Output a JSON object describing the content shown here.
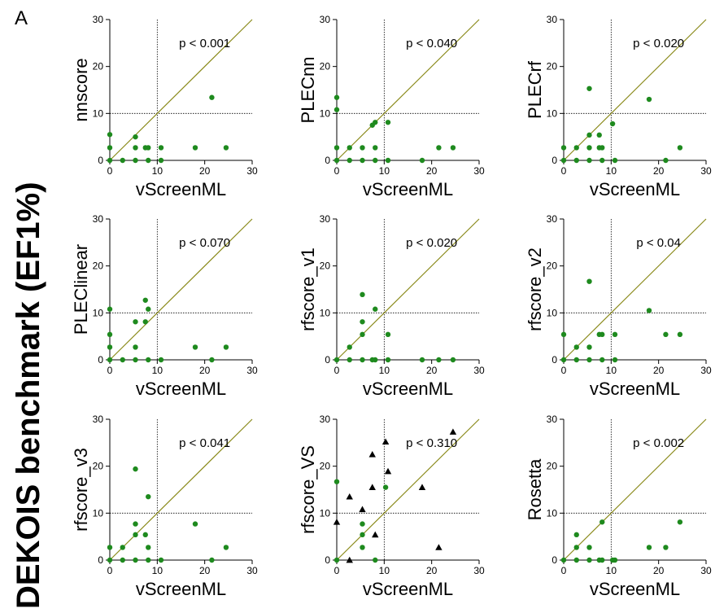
{
  "figure": {
    "panel_letter": "A",
    "y_title": "DEKOIS benchmark (EF1%)"
  },
  "chart_data": [
    {
      "type": "scatter",
      "xlabel": "vScreenML",
      "ylabel": "nnscore",
      "pvalue": "p < 0.001",
      "xlim": [
        0,
        30
      ],
      "ylim": [
        0,
        30
      ],
      "xticks": [
        0,
        10,
        20,
        30
      ],
      "yticks": [
        0,
        10,
        20,
        30
      ],
      "diagonal": true,
      "reference_lines": {
        "x": 10,
        "y": 10
      },
      "points": [
        [
          0,
          5.5
        ],
        [
          0,
          2.7
        ],
        [
          0,
          0
        ],
        [
          2.7,
          0
        ],
        [
          5.4,
          5
        ],
        [
          5.4,
          2.7
        ],
        [
          5.4,
          0
        ],
        [
          7.5,
          2.7
        ],
        [
          8.1,
          2.7
        ],
        [
          8.1,
          0
        ],
        [
          10.8,
          2.7
        ],
        [
          10.8,
          0
        ],
        [
          18,
          2.7
        ],
        [
          21.5,
          13.4
        ],
        [
          24.5,
          2.7
        ]
      ]
    },
    {
      "type": "scatter",
      "xlabel": "vScreenML",
      "ylabel": "PLECnn",
      "pvalue": "p < 0.040",
      "xlim": [
        0,
        30
      ],
      "ylim": [
        0,
        30
      ],
      "xticks": [
        0,
        10,
        20,
        30
      ],
      "yticks": [
        0,
        10,
        20,
        30
      ],
      "diagonal": true,
      "reference_lines": {
        "x": 10,
        "y": 10
      },
      "points": [
        [
          0,
          13.4
        ],
        [
          0,
          10.8
        ],
        [
          0,
          2.7
        ],
        [
          0,
          0
        ],
        [
          2.7,
          2.7
        ],
        [
          2.7,
          0
        ],
        [
          5.4,
          2.7
        ],
        [
          5.4,
          0
        ],
        [
          7.5,
          7.5
        ],
        [
          8.1,
          8.1
        ],
        [
          8.1,
          2.7
        ],
        [
          8.1,
          0
        ],
        [
          10.8,
          8.1
        ],
        [
          10.8,
          0
        ],
        [
          18,
          0
        ],
        [
          21.5,
          2.7
        ],
        [
          24.5,
          2.7
        ]
      ]
    },
    {
      "type": "scatter",
      "xlabel": "vScreenML",
      "ylabel": "PLECrf",
      "pvalue": "p < 0.020",
      "xlim": [
        0,
        30
      ],
      "ylim": [
        0,
        30
      ],
      "xticks": [
        0,
        10,
        20,
        30
      ],
      "yticks": [
        0,
        10,
        20,
        30
      ],
      "diagonal": true,
      "reference_lines": {
        "x": 10,
        "y": 10
      },
      "points": [
        [
          0,
          2.7
        ],
        [
          0,
          0
        ],
        [
          2.7,
          2.7
        ],
        [
          2.7,
          0
        ],
        [
          5.4,
          15.3
        ],
        [
          5.4,
          5.4
        ],
        [
          5.4,
          2.7
        ],
        [
          5.4,
          0
        ],
        [
          7.5,
          5.4
        ],
        [
          7.5,
          2.7
        ],
        [
          8.1,
          2.7
        ],
        [
          8.1,
          0
        ],
        [
          10.3,
          7.8
        ],
        [
          10.8,
          0
        ],
        [
          18,
          13
        ],
        [
          21.5,
          0
        ],
        [
          24.5,
          2.7
        ]
      ]
    },
    {
      "type": "scatter",
      "xlabel": "vScreenML",
      "ylabel": "PLEClinear",
      "pvalue": "p < 0.070",
      "xlim": [
        0,
        30
      ],
      "ylim": [
        0,
        30
      ],
      "xticks": [
        0,
        10,
        20,
        30
      ],
      "yticks": [
        0,
        10,
        20,
        30
      ],
      "diagonal": true,
      "reference_lines": {
        "x": 10,
        "y": 10
      },
      "points": [
        [
          0,
          10.8
        ],
        [
          0,
          5.4
        ],
        [
          0,
          2.7
        ],
        [
          0,
          0
        ],
        [
          2.7,
          0
        ],
        [
          5.4,
          8.1
        ],
        [
          5.4,
          2.7
        ],
        [
          5.4,
          0
        ],
        [
          7.5,
          12.7
        ],
        [
          7.5,
          8.1
        ],
        [
          8.1,
          10.8
        ],
        [
          8.1,
          0
        ],
        [
          10.8,
          0
        ],
        [
          18,
          2.7
        ],
        [
          21.5,
          0
        ],
        [
          24.5,
          2.7
        ]
      ]
    },
    {
      "type": "scatter",
      "xlabel": "vScreenML",
      "ylabel": "rfscore_v1",
      "pvalue": "p < 0.020",
      "xlim": [
        0,
        30
      ],
      "ylim": [
        0,
        30
      ],
      "xticks": [
        0,
        10,
        20,
        30
      ],
      "yticks": [
        0,
        10,
        20,
        30
      ],
      "diagonal": true,
      "reference_lines": {
        "x": 10,
        "y": 10
      },
      "points": [
        [
          0,
          0
        ],
        [
          2.7,
          2.7
        ],
        [
          2.7,
          0
        ],
        [
          5.4,
          13.9
        ],
        [
          5.4,
          8.1
        ],
        [
          5.4,
          5.4
        ],
        [
          5.4,
          0
        ],
        [
          7.5,
          0
        ],
        [
          8.1,
          10.8
        ],
        [
          8.1,
          0
        ],
        [
          10.8,
          5.4
        ],
        [
          10.8,
          0
        ],
        [
          18,
          0
        ],
        [
          21.5,
          0
        ],
        [
          24.5,
          0
        ]
      ]
    },
    {
      "type": "scatter",
      "xlabel": "vScreenML",
      "ylabel": "rfscore_v2",
      "pvalue": "p < 0.04",
      "xlim": [
        0,
        30
      ],
      "ylim": [
        0,
        30
      ],
      "xticks": [
        0,
        10,
        20,
        30
      ],
      "yticks": [
        0,
        10,
        20,
        30
      ],
      "diagonal": true,
      "reference_lines": {
        "x": 10,
        "y": 10
      },
      "points": [
        [
          0,
          5.4
        ],
        [
          0,
          0
        ],
        [
          2.7,
          2.7
        ],
        [
          2.7,
          0
        ],
        [
          5.4,
          16.7
        ],
        [
          5.4,
          2.7
        ],
        [
          5.4,
          0
        ],
        [
          7.5,
          5.4
        ],
        [
          8.1,
          5.4
        ],
        [
          8.1,
          0
        ],
        [
          10.8,
          5.4
        ],
        [
          10.8,
          0
        ],
        [
          18,
          10.5
        ],
        [
          21.5,
          5.4
        ],
        [
          24.5,
          5.4
        ]
      ]
    },
    {
      "type": "scatter",
      "xlabel": "vScreenML",
      "ylabel": "rfscore_v3",
      "pvalue": "p < 0.041",
      "xlim": [
        0,
        30
      ],
      "ylim": [
        0,
        30
      ],
      "xticks": [
        0,
        10,
        20,
        30
      ],
      "yticks": [
        0,
        10,
        20,
        30
      ],
      "diagonal": true,
      "reference_lines": {
        "x": 10,
        "y": 10
      },
      "points": [
        [
          0,
          2.7
        ],
        [
          0,
          0
        ],
        [
          2.7,
          2.7
        ],
        [
          2.7,
          0
        ],
        [
          5.4,
          19.4
        ],
        [
          5.4,
          7.7
        ],
        [
          5.4,
          5.4
        ],
        [
          5.4,
          0
        ],
        [
          7.5,
          5.4
        ],
        [
          8.1,
          13.5
        ],
        [
          8.1,
          2.7
        ],
        [
          8.1,
          0
        ],
        [
          10.8,
          0
        ],
        [
          18,
          7.7
        ],
        [
          21.5,
          0
        ],
        [
          24.5,
          2.7
        ]
      ]
    },
    {
      "type": "scatter",
      "xlabel": "vScreenML",
      "ylabel": "rfscore_VS",
      "pvalue": "p < 0.310",
      "xlim": [
        0,
        30
      ],
      "ylim": [
        0,
        30
      ],
      "xticks": [
        0,
        10,
        20,
        30
      ],
      "yticks": [
        0,
        10,
        20,
        30
      ],
      "diagonal": true,
      "reference_lines": {
        "x": 10,
        "y": 10
      },
      "points": [
        [
          0,
          16.7
        ],
        [
          0,
          0
        ],
        [
          5.4,
          7.7
        ],
        [
          5.4,
          5.4
        ],
        [
          5.4,
          2.7
        ],
        [
          8.1,
          0
        ],
        [
          10.3,
          15.5
        ]
      ],
      "triangles": [
        [
          0,
          8.1
        ],
        [
          2.7,
          13.5
        ],
        [
          2.7,
          0
        ],
        [
          5.4,
          10.8
        ],
        [
          7.5,
          22.5
        ],
        [
          7.5,
          15.5
        ],
        [
          8.1,
          5.4
        ],
        [
          10.3,
          25.2
        ],
        [
          10.8,
          18.9
        ],
        [
          18,
          15.5
        ],
        [
          21.5,
          2.7
        ],
        [
          24.5,
          27.3
        ]
      ]
    },
    {
      "type": "scatter",
      "xlabel": "vScreenML",
      "ylabel": "Rosetta",
      "pvalue": "p < 0.002",
      "xlim": [
        0,
        30
      ],
      "ylim": [
        0,
        30
      ],
      "xticks": [
        0,
        10,
        20,
        30
      ],
      "yticks": [
        0,
        10,
        20,
        30
      ],
      "diagonal": true,
      "reference_lines": {
        "x": 10,
        "y": 10
      },
      "points": [
        [
          0,
          0
        ],
        [
          2.7,
          5.4
        ],
        [
          2.7,
          2.7
        ],
        [
          2.7,
          0
        ],
        [
          5.4,
          2.7
        ],
        [
          5.4,
          0
        ],
        [
          7.5,
          0
        ],
        [
          8.1,
          8.1
        ],
        [
          8.1,
          0
        ],
        [
          10.3,
          0
        ],
        [
          10.8,
          0
        ],
        [
          18,
          2.7
        ],
        [
          21.5,
          2.7
        ],
        [
          24.5,
          8.1
        ]
      ]
    }
  ],
  "colors": {
    "point": "#1e8a1e",
    "triangle": "#000000",
    "diagonal": "#8a8a1a",
    "axis": "#000000",
    "refline": "#000000"
  }
}
